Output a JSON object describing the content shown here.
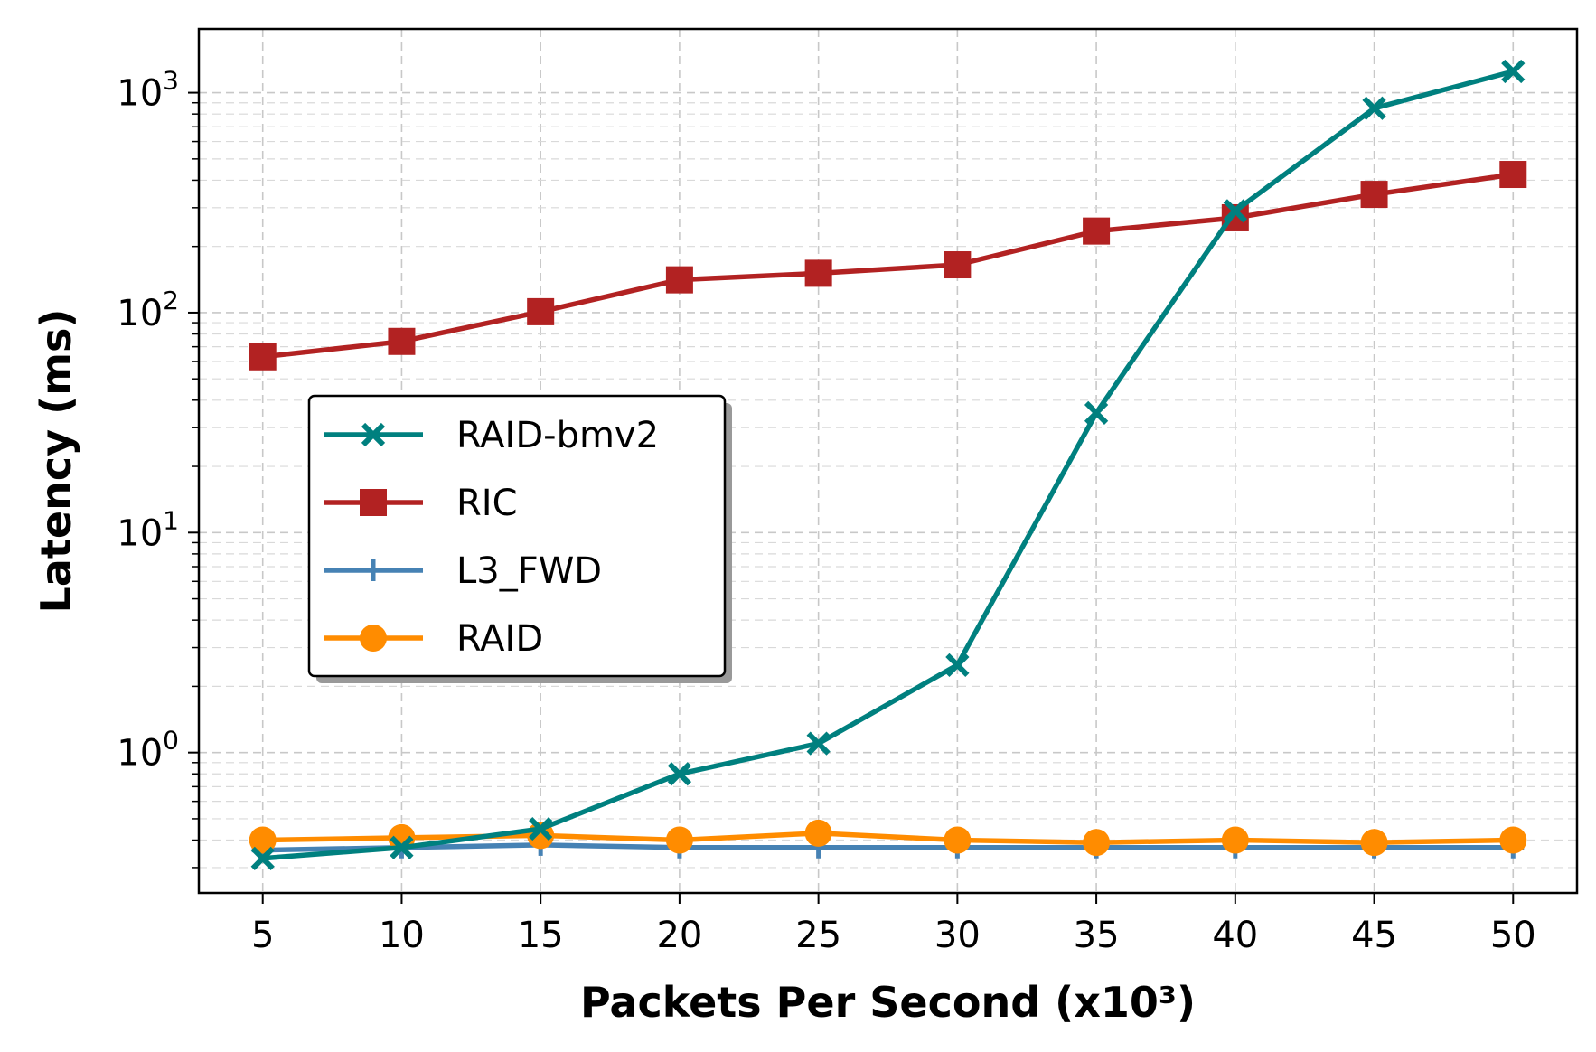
{
  "chart_data": {
    "type": "line",
    "xlabel": "Packets Per Second (x10³)",
    "ylabel": "Latency (ms)",
    "x": [
      5,
      10,
      15,
      20,
      25,
      30,
      35,
      40,
      45,
      50
    ],
    "xlim": [
      2.7,
      52.3
    ],
    "ylim": [
      0.23,
      1950
    ],
    "yscale": "log",
    "y_ticks": [
      {
        "value": 1,
        "base": "10",
        "exp": "0"
      },
      {
        "value": 10,
        "base": "10",
        "exp": "1"
      },
      {
        "value": 100,
        "base": "10",
        "exp": "2"
      },
      {
        "value": 1000,
        "base": "10",
        "exp": "3"
      }
    ],
    "grid": true,
    "legend": "center-left",
    "series": [
      {
        "name": "RAID-bmv2",
        "color": "#00807f",
        "marker": "x",
        "values": [
          0.33,
          0.37,
          0.45,
          0.8,
          1.1,
          2.5,
          35,
          290,
          850,
          1250
        ]
      },
      {
        "name": "RIC",
        "color": "#b22222",
        "marker": "square",
        "values": [
          63,
          74,
          101,
          141,
          151,
          165,
          235,
          270,
          345,
          425
        ]
      },
      {
        "name": "L3_FWD",
        "color": "#4682b4",
        "marker": "plus",
        "values": [
          0.36,
          0.37,
          0.38,
          0.37,
          0.37,
          0.37,
          0.37,
          0.37,
          0.37,
          0.37
        ]
      },
      {
        "name": "RAID",
        "color": "#ff8c00",
        "marker": "circle",
        "values": [
          0.4,
          0.41,
          0.42,
          0.4,
          0.43,
          0.4,
          0.39,
          0.4,
          0.39,
          0.4
        ]
      }
    ]
  }
}
